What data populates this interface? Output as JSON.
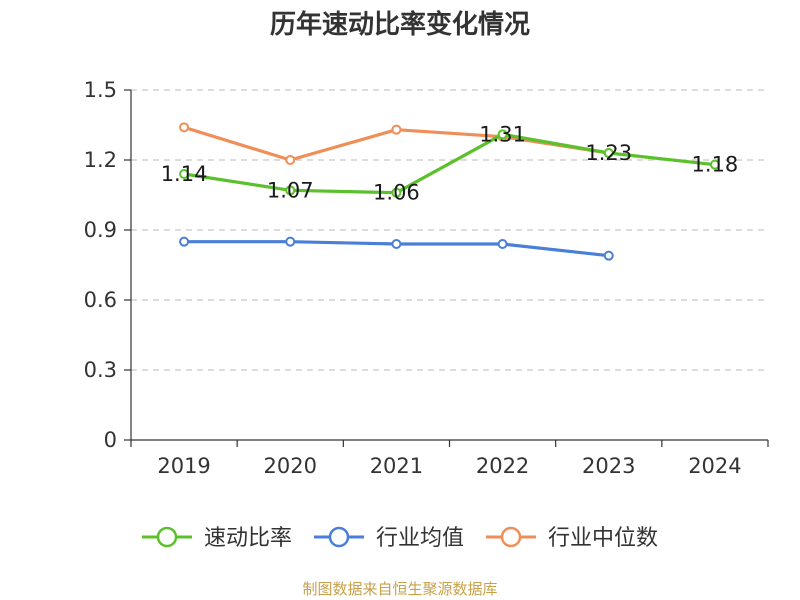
{
  "chart_data": {
    "type": "line",
    "title": "历年速动比率变化情况",
    "categories": [
      "2019",
      "2020",
      "2021",
      "2022",
      "2023",
      "2024"
    ],
    "ylim": [
      0,
      1.5
    ],
    "yticks": [
      "0",
      "0.3",
      "0.6",
      "0.9",
      "1.2",
      "1.5"
    ],
    "ytick_values": [
      0,
      0.3,
      0.6,
      0.9,
      1.2,
      1.5
    ],
    "grid": true,
    "legend_position": "bottom",
    "series": [
      {
        "name": "速动比率",
        "color": "#5bc12a",
        "values": [
          1.14,
          1.07,
          1.06,
          1.31,
          1.23,
          1.18
        ],
        "labels": [
          "1.14",
          "1.07",
          "1.06",
          "1.31",
          "1.23",
          "1.18"
        ]
      },
      {
        "name": "行业均值",
        "color": "#4a7fd8",
        "values": [
          0.85,
          0.85,
          0.84,
          0.84,
          0.79,
          null
        ]
      },
      {
        "name": "行业中位数",
        "color": "#f08e58",
        "values": [
          1.34,
          1.2,
          1.33,
          1.3,
          1.23,
          null
        ]
      }
    ],
    "source": "制图数据来自恒生聚源数据库"
  }
}
